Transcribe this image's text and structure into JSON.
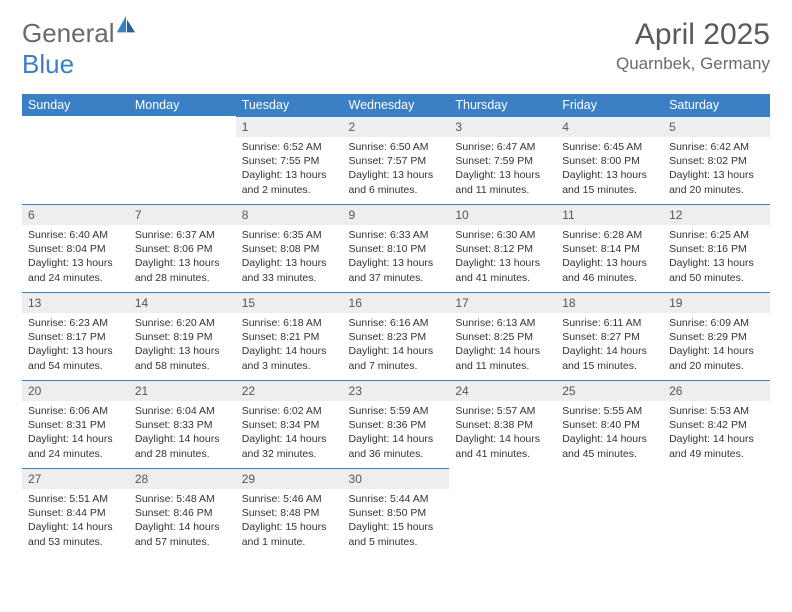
{
  "logo": {
    "text1": "General",
    "text2": "Blue"
  },
  "title": "April 2025",
  "location": "Quarnbek, Germany",
  "colors": {
    "header_bg": "#3b7fc4",
    "header_text": "#ffffff",
    "daynum_bg": "#eeeeee",
    "border": "#3b7fc4",
    "logo_gray": "#6a6a6a",
    "logo_blue": "#3b7fc4"
  },
  "weekdays": [
    "Sunday",
    "Monday",
    "Tuesday",
    "Wednesday",
    "Thursday",
    "Friday",
    "Saturday"
  ],
  "weeks": [
    [
      null,
      null,
      {
        "d": "1",
        "sr": "6:52 AM",
        "ss": "7:55 PM",
        "dl": "13 hours and 2 minutes."
      },
      {
        "d": "2",
        "sr": "6:50 AM",
        "ss": "7:57 PM",
        "dl": "13 hours and 6 minutes."
      },
      {
        "d": "3",
        "sr": "6:47 AM",
        "ss": "7:59 PM",
        "dl": "13 hours and 11 minutes."
      },
      {
        "d": "4",
        "sr": "6:45 AM",
        "ss": "8:00 PM",
        "dl": "13 hours and 15 minutes."
      },
      {
        "d": "5",
        "sr": "6:42 AM",
        "ss": "8:02 PM",
        "dl": "13 hours and 20 minutes."
      }
    ],
    [
      {
        "d": "6",
        "sr": "6:40 AM",
        "ss": "8:04 PM",
        "dl": "13 hours and 24 minutes."
      },
      {
        "d": "7",
        "sr": "6:37 AM",
        "ss": "8:06 PM",
        "dl": "13 hours and 28 minutes."
      },
      {
        "d": "8",
        "sr": "6:35 AM",
        "ss": "8:08 PM",
        "dl": "13 hours and 33 minutes."
      },
      {
        "d": "9",
        "sr": "6:33 AM",
        "ss": "8:10 PM",
        "dl": "13 hours and 37 minutes."
      },
      {
        "d": "10",
        "sr": "6:30 AM",
        "ss": "8:12 PM",
        "dl": "13 hours and 41 minutes."
      },
      {
        "d": "11",
        "sr": "6:28 AM",
        "ss": "8:14 PM",
        "dl": "13 hours and 46 minutes."
      },
      {
        "d": "12",
        "sr": "6:25 AM",
        "ss": "8:16 PM",
        "dl": "13 hours and 50 minutes."
      }
    ],
    [
      {
        "d": "13",
        "sr": "6:23 AM",
        "ss": "8:17 PM",
        "dl": "13 hours and 54 minutes."
      },
      {
        "d": "14",
        "sr": "6:20 AM",
        "ss": "8:19 PM",
        "dl": "13 hours and 58 minutes."
      },
      {
        "d": "15",
        "sr": "6:18 AM",
        "ss": "8:21 PM",
        "dl": "14 hours and 3 minutes."
      },
      {
        "d": "16",
        "sr": "6:16 AM",
        "ss": "8:23 PM",
        "dl": "14 hours and 7 minutes."
      },
      {
        "d": "17",
        "sr": "6:13 AM",
        "ss": "8:25 PM",
        "dl": "14 hours and 11 minutes."
      },
      {
        "d": "18",
        "sr": "6:11 AM",
        "ss": "8:27 PM",
        "dl": "14 hours and 15 minutes."
      },
      {
        "d": "19",
        "sr": "6:09 AM",
        "ss": "8:29 PM",
        "dl": "14 hours and 20 minutes."
      }
    ],
    [
      {
        "d": "20",
        "sr": "6:06 AM",
        "ss": "8:31 PM",
        "dl": "14 hours and 24 minutes."
      },
      {
        "d": "21",
        "sr": "6:04 AM",
        "ss": "8:33 PM",
        "dl": "14 hours and 28 minutes."
      },
      {
        "d": "22",
        "sr": "6:02 AM",
        "ss": "8:34 PM",
        "dl": "14 hours and 32 minutes."
      },
      {
        "d": "23",
        "sr": "5:59 AM",
        "ss": "8:36 PM",
        "dl": "14 hours and 36 minutes."
      },
      {
        "d": "24",
        "sr": "5:57 AM",
        "ss": "8:38 PM",
        "dl": "14 hours and 41 minutes."
      },
      {
        "d": "25",
        "sr": "5:55 AM",
        "ss": "8:40 PM",
        "dl": "14 hours and 45 minutes."
      },
      {
        "d": "26",
        "sr": "5:53 AM",
        "ss": "8:42 PM",
        "dl": "14 hours and 49 minutes."
      }
    ],
    [
      {
        "d": "27",
        "sr": "5:51 AM",
        "ss": "8:44 PM",
        "dl": "14 hours and 53 minutes."
      },
      {
        "d": "28",
        "sr": "5:48 AM",
        "ss": "8:46 PM",
        "dl": "14 hours and 57 minutes."
      },
      {
        "d": "29",
        "sr": "5:46 AM",
        "ss": "8:48 PM",
        "dl": "15 hours and 1 minute."
      },
      {
        "d": "30",
        "sr": "5:44 AM",
        "ss": "8:50 PM",
        "dl": "15 hours and 5 minutes."
      },
      null,
      null,
      null
    ]
  ],
  "labels": {
    "sunrise": "Sunrise:",
    "sunset": "Sunset:",
    "daylight": "Daylight:"
  }
}
